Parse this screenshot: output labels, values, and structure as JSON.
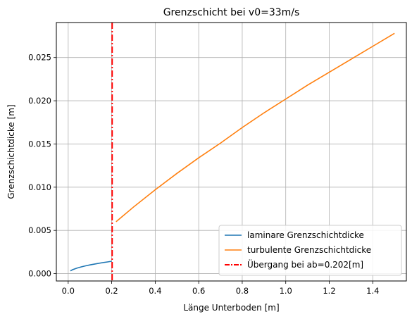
{
  "chart_data": {
    "type": "line",
    "title": "Grenzschicht bei v0=33m/s",
    "xlabel": "Länge Unterboden [m]",
    "ylabel": "Grenzschichtdicke [m]",
    "xlim": [
      -0.0545,
      1.5545
    ],
    "ylim": [
      -0.00085,
      0.02905
    ],
    "xticks": [
      0.0,
      0.2,
      0.4,
      0.6,
      0.8,
      1.0,
      1.2,
      1.4
    ],
    "xtick_labels": [
      "0.0",
      "0.2",
      "0.4",
      "0.6",
      "0.8",
      "1.0",
      "1.2",
      "1.4"
    ],
    "yticks": [
      0.0,
      0.005,
      0.01,
      0.015,
      0.02,
      0.025
    ],
    "ytick_labels": [
      "0.000",
      "0.005",
      "0.010",
      "0.015",
      "0.020",
      "0.025"
    ],
    "grid": true,
    "legend_position": "lower-right",
    "series": [
      {
        "name": "laminare Grenzschichtdicke",
        "color": "#1f77b4",
        "style": "solid",
        "x": [
          0.01,
          0.02,
          0.03,
          0.04,
          0.05,
          0.06,
          0.08,
          0.1,
          0.12,
          0.14,
          0.16,
          0.18,
          0.2
        ],
        "y": [
          0.00032,
          0.00045,
          0.00055,
          0.00064,
          0.00071,
          0.00078,
          0.0009,
          0.00101,
          0.0011,
          0.00119,
          0.00128,
          0.00135,
          0.00143
        ]
      },
      {
        "name": "turbulente Grenzschichtdicke",
        "color": "#ff7f0e",
        "style": "solid",
        "x": [
          0.22,
          0.3,
          0.4,
          0.5,
          0.6,
          0.7,
          0.8,
          0.9,
          1.0,
          1.1,
          1.2,
          1.3,
          1.4,
          1.5
        ],
        "y": [
          0.006,
          0.0077,
          0.0097,
          0.0116,
          0.0134,
          0.0151,
          0.0169,
          0.0186,
          0.0202,
          0.0218,
          0.0233,
          0.0248,
          0.0263,
          0.0278
        ]
      },
      {
        "name": "Übergang bei ab=0.202[m]",
        "color": "#ff0000",
        "style": "dashdot",
        "vline_x": 0.202
      }
    ]
  }
}
